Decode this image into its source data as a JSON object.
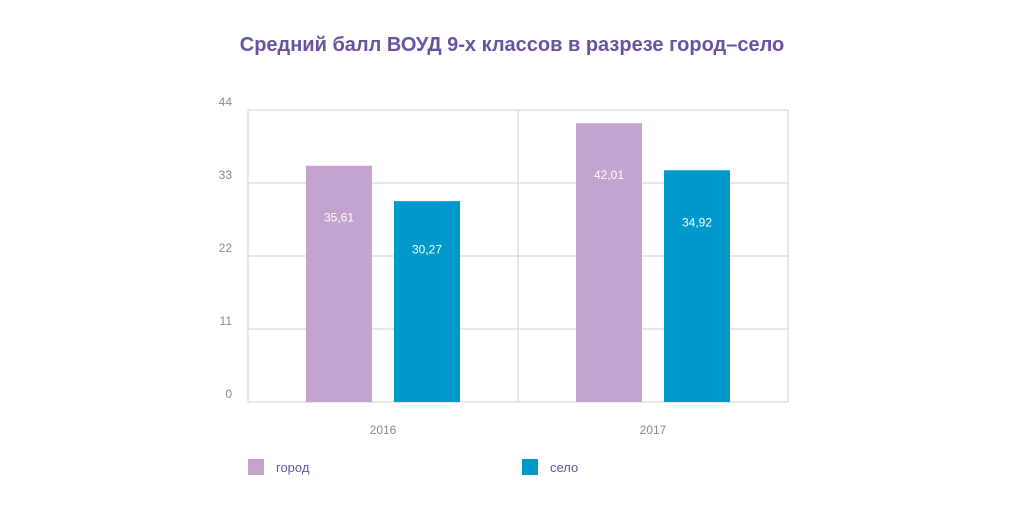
{
  "chart_data": {
    "type": "bar",
    "title": "Средний балл ВОУД 9-х классов в разрезе город–село",
    "xlabel": "",
    "ylabel": "",
    "categories": [
      "2016",
      "2017"
    ],
    "series": [
      {
        "name": "город",
        "values": [
          35.61,
          42.01
        ],
        "labels": [
          "35,61",
          "42,01"
        ],
        "color": "#c5a3cf"
      },
      {
        "name": "село",
        "values": [
          30.27,
          34.92
        ],
        "labels": [
          "30,27",
          "34,92"
        ],
        "color": "#0099cc"
      }
    ],
    "ylim": [
      0,
      44
    ],
    "yticks": [
      0,
      11,
      22,
      33,
      44
    ],
    "grid": true,
    "legend_position": "bottom-left",
    "title_color": "#6b52a1"
  }
}
